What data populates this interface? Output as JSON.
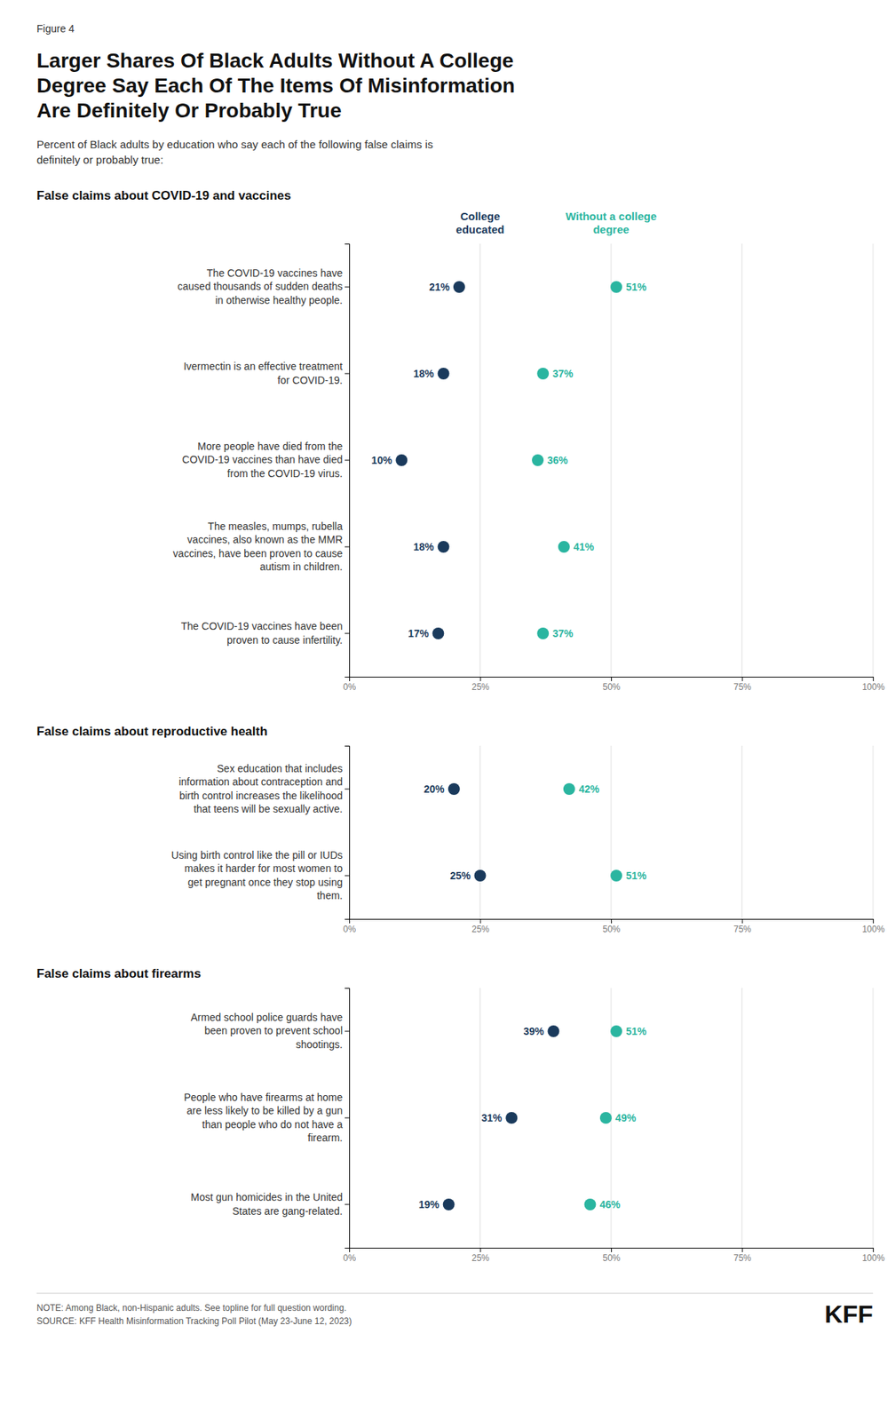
{
  "title": "Larger Shares Of Black Adults Without A College\nDegree Say Each Of The Items Of Misinformation\nAre Definitely Or Probably True",
  "subtitle": "Percent of Black adults by education who say each of the following false claims is\ndefinitely or probably true:",
  "annotations": [
    "Figure 4",
    "NOTE: Among Black, non-Hispanic adults. See topline for full question wording.\nSOURCE: KFF Health Misinformation Tracking Poll Pilot (May 23-June 12, 2023)",
    "KFF"
  ],
  "chart_data": [
    {
      "type": "dot",
      "orientation": "horizontal",
      "title": "False claims about COVID-19 and vaccines",
      "categories": [
        "The COVID-19 vaccines have\ncaused thousands of sudden deaths\nin otherwise healthy people.",
        "Ivermectin is an effective treatment\nfor COVID-19.",
        "More people have died from the\nCOVID-19 vaccines than have died\nfrom the COVID-19 virus.",
        "The measles, mumps, rubella\nvaccines, also known as the MMR\nvaccines, have been proven to cause\nautism in children.",
        "The COVID-19 vaccines have been\nproven to cause infertility."
      ],
      "series": [
        {
          "name": "College\neducated",
          "color": "#1a3a5c",
          "values": [
            21,
            18,
            10,
            18,
            17
          ],
          "value_labels": [
            "21%",
            "18%",
            "10%",
            "18%",
            "17%"
          ]
        },
        {
          "name": "Without a college\ndegree",
          "color": "#2ab5a0",
          "values": [
            51,
            37,
            36,
            41,
            37
          ],
          "value_labels": [
            "51%",
            "37%",
            "36%",
            "41%",
            "37%"
          ]
        }
      ],
      "xlim": [
        0,
        100
      ],
      "xticks": [
        {
          "value": 0,
          "label": "0%"
        },
        {
          "value": 25,
          "label": "25%"
        },
        {
          "value": 50,
          "label": "50%"
        },
        {
          "value": 75,
          "label": "75%"
        },
        {
          "value": 100,
          "label": "100%"
        }
      ],
      "grid": true,
      "data_labels": true,
      "legend": "top"
    },
    {
      "type": "dot",
      "orientation": "horizontal",
      "title": "False claims about reproductive health",
      "categories": [
        "Sex education that includes\ninformation about contraception and\nbirth control increases the likelihood\nthat teens will be sexually active.",
        "Using birth control like the pill or IUDs\nmakes it harder for most women to\nget pregnant once they stop using\nthem."
      ],
      "series": [
        {
          "color": "#1a3a5c",
          "values": [
            20,
            25
          ],
          "value_labels": [
            "20%",
            "25%"
          ]
        },
        {
          "color": "#2ab5a0",
          "values": [
            42,
            51
          ],
          "value_labels": [
            "42%",
            "51%"
          ]
        }
      ],
      "xlim": [
        0,
        100
      ],
      "xticks": [
        {
          "value": 0,
          "label": "0%"
        },
        {
          "value": 25,
          "label": "25%"
        },
        {
          "value": 50,
          "label": "50%"
        },
        {
          "value": 75,
          "label": "75%"
        },
        {
          "value": 100,
          "label": "100%"
        }
      ],
      "grid": true,
      "data_labels": true
    },
    {
      "type": "dot",
      "orientation": "horizontal",
      "title": "False claims about firearms",
      "categories": [
        "Armed school police guards have\nbeen proven to prevent school\nshootings.",
        "People who have firearms at home\nare less likely to be killed by a gun\nthan people who do not have a\nfirearm.",
        "Most gun homicides in the United\nStates are gang-related."
      ],
      "series": [
        {
          "color": "#1a3a5c",
          "values": [
            39,
            31,
            19
          ],
          "value_labels": [
            "39%",
            "31%",
            "19%"
          ]
        },
        {
          "color": "#2ab5a0",
          "values": [
            51,
            49,
            46
          ],
          "value_labels": [
            "51%",
            "49%",
            "46%"
          ]
        }
      ],
      "xlim": [
        0,
        100
      ],
      "xticks": [
        {
          "value": 0,
          "label": "0%"
        },
        {
          "value": 25,
          "label": "25%"
        },
        {
          "value": 50,
          "label": "50%"
        },
        {
          "value": 75,
          "label": "75%"
        },
        {
          "value": 100,
          "label": "100%"
        }
      ],
      "grid": true,
      "data_labels": true
    }
  ]
}
